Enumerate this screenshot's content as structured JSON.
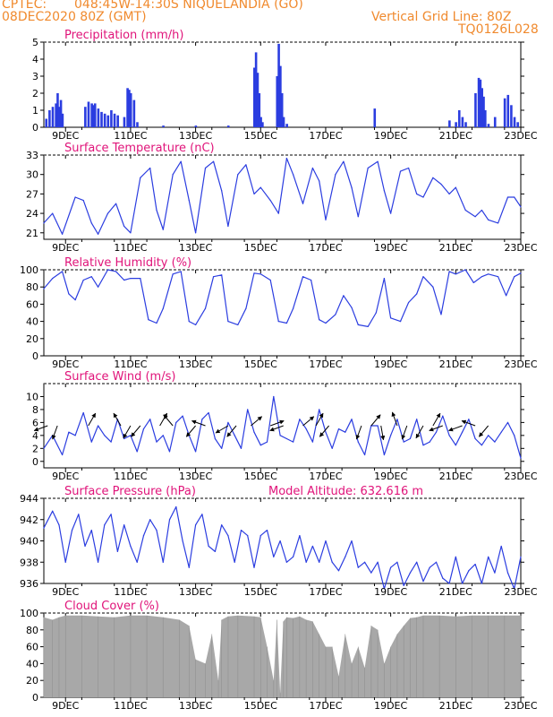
{
  "header": {
    "source": "CPTEC:",
    "location": "048:45W-14:30S  NIQUELANDIA (GO)",
    "run": "08DEC2020 80Z (GMT)",
    "grid_note": "Vertical Grid Line: 80Z",
    "code": "TQ0126L028"
  },
  "colors": {
    "header": "#f08a2e",
    "titles": "#e0147a",
    "series": "#2b3de0",
    "cloud": "#a8a8a8",
    "axis": "#000000"
  },
  "x_axis": {
    "start": "08DEC2020 08Z",
    "end": "23DEC",
    "ticks": [
      {
        "label": "9DEC",
        "day": 9
      },
      {
        "label": "11DEC",
        "day": 11
      },
      {
        "label": "13DEC",
        "day": 13
      },
      {
        "label": "15DEC",
        "day": 15
      },
      {
        "label": "17DEC",
        "day": 17
      },
      {
        "label": "19DEC",
        "day": 19
      },
      {
        "label": "21DEC",
        "day": 21
      },
      {
        "label": "23DEC",
        "day": 23
      }
    ]
  },
  "chart_data": [
    {
      "type": "bar",
      "title": "Precipitation (mm/h)",
      "ylim": [
        0,
        5
      ],
      "yticks": [
        0,
        1,
        2,
        3,
        4,
        5
      ],
      "x_unit": "day of December 2020",
      "x": [
        8.4,
        8.5,
        8.6,
        8.7,
        8.75,
        8.8,
        8.85,
        8.9,
        9.6,
        9.7,
        9.8,
        9.85,
        9.9,
        10.0,
        10.1,
        10.2,
        10.3,
        10.4,
        10.5,
        10.6,
        10.8,
        10.9,
        10.95,
        11.0,
        11.1,
        11.2,
        12.0,
        13.0,
        14.0,
        14.8,
        14.85,
        14.9,
        14.95,
        15.0,
        15.05,
        15.5,
        15.55,
        15.6,
        15.65,
        15.7,
        15.8,
        18.5,
        20.8,
        21.0,
        21.1,
        21.2,
        21.3,
        21.6,
        21.7,
        21.75,
        21.8,
        21.85,
        21.9,
        22.0,
        22.2,
        22.5,
        22.6,
        22.7,
        22.8,
        22.9
      ],
      "values": [
        0.5,
        1.0,
        1.2,
        1.4,
        2.0,
        1.2,
        1.6,
        0.8,
        1.2,
        1.5,
        1.4,
        1.3,
        1.4,
        1.1,
        0.9,
        0.8,
        0.7,
        1.0,
        0.8,
        0.7,
        0.6,
        2.3,
        2.2,
        2.0,
        1.6,
        0.3,
        0.1,
        0.1,
        0.1,
        3.5,
        4.4,
        3.2,
        2.0,
        0.6,
        0.3,
        3.0,
        4.9,
        3.6,
        2.0,
        0.6,
        0.2,
        1.1,
        0.4,
        0.3,
        1.0,
        0.6,
        0.3,
        2.0,
        2.9,
        2.8,
        2.3,
        1.8,
        1.0,
        0.2,
        0.6,
        1.7,
        1.9,
        1.3,
        0.6,
        0.3
      ]
    },
    {
      "type": "line",
      "title": "Surface Temperature (nC)",
      "ylim": [
        20,
        33
      ],
      "yticks": [
        21,
        24,
        27,
        30,
        33
      ],
      "x_unit": "day of December 2020",
      "x": [
        8.33,
        8.6,
        8.9,
        9.3,
        9.55,
        9.8,
        10.0,
        10.3,
        10.55,
        10.8,
        11.0,
        11.3,
        11.6,
        11.8,
        12.0,
        12.3,
        12.55,
        12.8,
        13.0,
        13.3,
        13.55,
        13.8,
        14.0,
        14.3,
        14.55,
        14.8,
        15.0,
        15.3,
        15.55,
        15.8,
        16.0,
        16.3,
        16.6,
        16.8,
        17.0,
        17.3,
        17.55,
        17.8,
        18.0,
        18.3,
        18.6,
        18.8,
        19.0,
        19.3,
        19.55,
        19.8,
        20.0,
        20.3,
        20.55,
        20.8,
        21.0,
        21.3,
        21.6,
        21.8,
        22.0,
        22.3,
        22.6,
        22.8,
        23.0
      ],
      "values": [
        22.5,
        24.0,
        20.8,
        26.5,
        26.0,
        22.5,
        20.8,
        24.0,
        25.5,
        22.0,
        21.0,
        29.5,
        31.0,
        24.5,
        21.5,
        30.0,
        32.0,
        26.0,
        21.0,
        31.0,
        32.0,
        27.5,
        22.0,
        30.0,
        31.5,
        27.0,
        28.0,
        26.0,
        24.0,
        32.5,
        30.0,
        25.5,
        31.0,
        29.0,
        23.0,
        30.0,
        32.0,
        28.0,
        23.5,
        31.0,
        32.0,
        27.5,
        24.0,
        30.5,
        31.0,
        27.0,
        26.5,
        29.5,
        28.5,
        27.0,
        28.0,
        24.5,
        23.5,
        24.5,
        23.0,
        22.5,
        26.5,
        26.5,
        25.0
      ]
    },
    {
      "type": "line",
      "title": "Relative Humidity (%)",
      "ylim": [
        0,
        100
      ],
      "yticks": [
        0,
        20,
        40,
        60,
        80,
        100
      ],
      "x_unit": "day of December 2020",
      "x": [
        8.33,
        8.6,
        8.9,
        9.1,
        9.3,
        9.55,
        9.8,
        10.0,
        10.3,
        10.55,
        10.8,
        11.0,
        11.3,
        11.55,
        11.8,
        12.0,
        12.3,
        12.55,
        12.8,
        13.0,
        13.3,
        13.55,
        13.8,
        14.0,
        14.3,
        14.55,
        14.8,
        15.0,
        15.3,
        15.55,
        15.8,
        16.0,
        16.3,
        16.55,
        16.8,
        17.0,
        17.3,
        17.55,
        17.8,
        18.0,
        18.3,
        18.55,
        18.8,
        19.0,
        19.3,
        19.55,
        19.8,
        20.0,
        20.3,
        20.55,
        20.8,
        21.0,
        21.3,
        21.55,
        21.8,
        22.0,
        22.3,
        22.55,
        22.8,
        23.0
      ],
      "values": [
        78,
        90,
        98,
        72,
        65,
        88,
        92,
        80,
        100,
        98,
        88,
        90,
        90,
        42,
        38,
        55,
        95,
        98,
        40,
        36,
        55,
        92,
        94,
        40,
        36,
        55,
        96,
        95,
        88,
        40,
        38,
        55,
        92,
        88,
        42,
        38,
        48,
        70,
        56,
        36,
        34,
        50,
        90,
        44,
        40,
        62,
        72,
        92,
        80,
        48,
        98,
        95,
        100,
        85,
        92,
        95,
        92,
        70,
        92,
        96
      ]
    },
    {
      "type": "line",
      "title": "Surface Wind (m/s)",
      "ylim": [
        -1,
        12
      ],
      "yticks": [
        0,
        2,
        4,
        6,
        8,
        10
      ],
      "has_wind_vectors": true,
      "x_unit": "day of December 2020",
      "x": [
        8.33,
        8.6,
        8.9,
        9.1,
        9.3,
        9.55,
        9.8,
        10.0,
        10.2,
        10.4,
        10.6,
        10.8,
        11.0,
        11.2,
        11.4,
        11.6,
        11.8,
        12.0,
        12.2,
        12.4,
        12.6,
        12.8,
        13.0,
        13.2,
        13.4,
        13.6,
        13.8,
        14.0,
        14.2,
        14.4,
        14.6,
        14.8,
        15.0,
        15.2,
        15.4,
        15.6,
        15.8,
        16.0,
        16.2,
        16.4,
        16.6,
        16.8,
        17.0,
        17.2,
        17.4,
        17.6,
        17.8,
        18.0,
        18.2,
        18.4,
        18.6,
        18.8,
        19.0,
        19.2,
        19.4,
        19.6,
        19.8,
        20.0,
        20.2,
        20.4,
        20.6,
        20.8,
        21.0,
        21.2,
        21.4,
        21.6,
        21.8,
        22.0,
        22.2,
        22.4,
        22.6,
        22.8,
        23.0
      ],
      "values": [
        2.0,
        4.0,
        1.0,
        4.5,
        4.0,
        7.5,
        3.0,
        5.5,
        4.0,
        3.0,
        6.5,
        3.5,
        4.0,
        1.5,
        5.0,
        6.5,
        3.0,
        4.0,
        1.5,
        6.0,
        7.0,
        4.0,
        1.5,
        6.5,
        7.5,
        3.5,
        2.0,
        6.0,
        4.0,
        2.0,
        8.0,
        4.5,
        2.5,
        3.0,
        10.0,
        4.0,
        3.5,
        3.0,
        6.5,
        5.0,
        3.0,
        8.0,
        4.5,
        2.0,
        5.0,
        4.5,
        6.5,
        3.0,
        1.0,
        5.5,
        5.5,
        1.0,
        4.0,
        6.5,
        3.0,
        3.5,
        6.5,
        2.5,
        3.0,
        4.5,
        7.0,
        4.0,
        2.5,
        4.5,
        6.5,
        3.5,
        2.5,
        4.0,
        3.0,
        4.5,
        6.0,
        4.0,
        0.5
      ],
      "vectors": [
        {
          "day": 8.45,
          "angle_deg": 200
        },
        {
          "day": 8.75,
          "angle_deg": 250
        },
        {
          "day": 9.7,
          "angle_deg": 60
        },
        {
          "day": 10.7,
          "angle_deg": 120
        },
        {
          "day": 11.0,
          "angle_deg": 240
        },
        {
          "day": 11.3,
          "angle_deg": 230
        },
        {
          "day": 11.9,
          "angle_deg": 60
        },
        {
          "day": 12.3,
          "angle_deg": 130
        },
        {
          "day": 13.0,
          "angle_deg": 230
        },
        {
          "day": 13.3,
          "angle_deg": 160
        },
        {
          "day": 14.0,
          "angle_deg": 210
        },
        {
          "day": 14.25,
          "angle_deg": 230
        },
        {
          "day": 14.7,
          "angle_deg": 40
        },
        {
          "day": 15.3,
          "angle_deg": 20
        },
        {
          "day": 15.7,
          "angle_deg": 200
        },
        {
          "day": 16.3,
          "angle_deg": 40
        },
        {
          "day": 16.7,
          "angle_deg": 60
        },
        {
          "day": 17.1,
          "angle_deg": 230
        },
        {
          "day": 18.1,
          "angle_deg": 250
        },
        {
          "day": 18.4,
          "angle_deg": 50
        },
        {
          "day": 18.7,
          "angle_deg": 280
        },
        {
          "day": 19.2,
          "angle_deg": 110
        },
        {
          "day": 19.5,
          "angle_deg": 250
        },
        {
          "day": 20.0,
          "angle_deg": 240
        },
        {
          "day": 20.3,
          "angle_deg": 60
        },
        {
          "day": 20.6,
          "angle_deg": 200
        },
        {
          "day": 21.2,
          "angle_deg": 200
        },
        {
          "day": 21.6,
          "angle_deg": 160
        },
        {
          "day": 22.0,
          "angle_deg": 230
        }
      ]
    },
    {
      "type": "line",
      "title": "Surface Pressure (hPa)",
      "subtitle": "Model Altitude: 632.616 m",
      "ylim": [
        936,
        944
      ],
      "yticks": [
        936,
        938,
        940,
        942,
        944
      ],
      "x_unit": "day of December 2020",
      "x": [
        8.33,
        8.6,
        8.8,
        9.0,
        9.2,
        9.4,
        9.6,
        9.8,
        10.0,
        10.2,
        10.4,
        10.6,
        10.8,
        11.0,
        11.2,
        11.4,
        11.6,
        11.8,
        12.0,
        12.2,
        12.4,
        12.6,
        12.8,
        13.0,
        13.2,
        13.4,
        13.6,
        13.8,
        14.0,
        14.2,
        14.4,
        14.6,
        14.8,
        15.0,
        15.2,
        15.4,
        15.6,
        15.8,
        16.0,
        16.2,
        16.4,
        16.6,
        16.8,
        17.0,
        17.2,
        17.4,
        17.6,
        17.8,
        18.0,
        18.2,
        18.4,
        18.6,
        18.8,
        19.0,
        19.2,
        19.4,
        19.6,
        19.8,
        20.0,
        20.2,
        20.4,
        20.6,
        20.8,
        21.0,
        21.2,
        21.4,
        21.6,
        21.8,
        22.0,
        22.2,
        22.4,
        22.6,
        22.8,
        23.0
      ],
      "values": [
        941.2,
        942.8,
        941.5,
        938.0,
        941.0,
        942.5,
        939.5,
        941.0,
        938.0,
        941.5,
        942.5,
        939.0,
        941.5,
        939.5,
        938.0,
        940.5,
        942.0,
        941.0,
        938.0,
        942.0,
        943.2,
        940.0,
        937.5,
        941.5,
        942.5,
        939.5,
        939.0,
        941.5,
        940.5,
        938.0,
        941.0,
        940.5,
        937.5,
        940.5,
        941.0,
        938.5,
        940.0,
        938.0,
        938.5,
        940.5,
        938.0,
        939.5,
        938.0,
        940.0,
        938.0,
        937.2,
        938.5,
        940.0,
        937.5,
        938.0,
        937.0,
        938.0,
        935.5,
        937.5,
        938.0,
        935.8,
        937.0,
        938.0,
        936.2,
        937.5,
        938.0,
        936.5,
        936.0,
        938.5,
        936.0,
        937.2,
        937.8,
        936.0,
        938.5,
        937.0,
        939.5,
        937.0,
        935.5,
        938.5
      ]
    },
    {
      "type": "area",
      "title": "Cloud Cover (%)",
      "ylim": [
        0,
        100
      ],
      "yticks": [
        0,
        20,
        40,
        60,
        80,
        100
      ],
      "x_unit": "day of December 2020",
      "x": [
        8.33,
        8.6,
        8.8,
        9.0,
        9.5,
        10.0,
        10.5,
        11.0,
        11.5,
        12.0,
        12.5,
        12.8,
        13.0,
        13.3,
        13.5,
        13.7,
        13.8,
        14.0,
        14.3,
        14.8,
        15.0,
        15.2,
        15.4,
        15.5,
        15.6,
        15.7,
        15.8,
        16.0,
        16.2,
        16.4,
        16.6,
        16.8,
        17.0,
        17.2,
        17.4,
        17.6,
        17.8,
        18.0,
        18.2,
        18.4,
        18.6,
        18.8,
        19.0,
        19.2,
        19.4,
        19.6,
        19.8,
        20.0,
        20.5,
        21.0,
        21.5,
        22.0,
        22.5,
        23.0
      ],
      "values": [
        95,
        92,
        95,
        97,
        97,
        96,
        95,
        97,
        97,
        95,
        92,
        85,
        45,
        40,
        75,
        20,
        92,
        96,
        97,
        96,
        95,
        60,
        20,
        92,
        5,
        90,
        95,
        94,
        96,
        92,
        90,
        75,
        60,
        60,
        25,
        75,
        40,
        60,
        35,
        85,
        80,
        40,
        60,
        75,
        85,
        94,
        95,
        97,
        97,
        96,
        97,
        97,
        97,
        97
      ]
    }
  ]
}
